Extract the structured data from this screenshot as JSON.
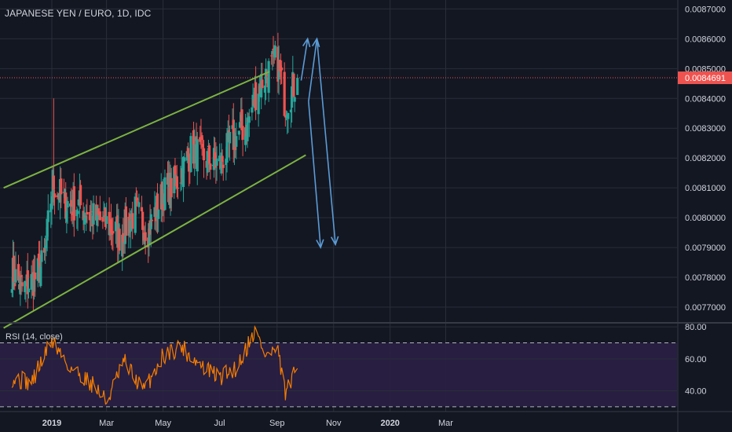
{
  "header": {
    "symbol_title": "JAPANESE YEN / EURO, 1D, IDC"
  },
  "colors": {
    "background": "#131722",
    "grid": "#2a2e39",
    "axis_text": "#d1d4dc",
    "up_candle": "#26a69a",
    "down_candle": "#ef5350",
    "channel_lines": "#7cb342",
    "projection_arrows": "#5b9bd5",
    "rsi_line": "#f57c00",
    "rsi_band": "#2a1f45",
    "price_tag": "#ef5350"
  },
  "chart_data": [
    {
      "type": "candlestick",
      "title": "JAPANESE YEN / EURO, 1D, IDC",
      "x_ticks": [
        "2019",
        "Mar",
        "May",
        "Jul",
        "Sep",
        "Nov",
        "2020",
        "Mar"
      ],
      "y_ticks": [
        "0.0077000",
        "0.0078000",
        "0.0079000",
        "0.0080000",
        "0.0081000",
        "0.0082000",
        "0.0083000",
        "0.0084000",
        "0.0085000",
        "0.0086000",
        "0.0087000"
      ],
      "ylim": [
        0.00765,
        0.00873
      ],
      "last_price_label": "0.0084691",
      "last_price": 0.0084691,
      "overview_closes": [
        {
          "date": "2018-11-19",
          "close": 0.00782
        },
        {
          "date": "2018-12-01",
          "close": 0.00776
        },
        {
          "date": "2018-12-15",
          "close": 0.0078
        },
        {
          "date": "2018-12-24",
          "close": 0.00786
        },
        {
          "date": "2019-01-02",
          "close": 0.00812
        },
        {
          "date": "2019-01-15",
          "close": 0.00805
        },
        {
          "date": "2019-02-01",
          "close": 0.00804
        },
        {
          "date": "2019-02-15",
          "close": 0.008
        },
        {
          "date": "2019-03-01",
          "close": 0.00798
        },
        {
          "date": "2019-03-15",
          "close": 0.00794
        },
        {
          "date": "2019-04-01",
          "close": 0.00802
        },
        {
          "date": "2019-04-15",
          "close": 0.00796
        },
        {
          "date": "2019-05-01",
          "close": 0.00808
        },
        {
          "date": "2019-05-15",
          "close": 0.00812
        },
        {
          "date": "2019-06-01",
          "close": 0.00823
        },
        {
          "date": "2019-06-15",
          "close": 0.0082
        },
        {
          "date": "2019-07-01",
          "close": 0.00818
        },
        {
          "date": "2019-07-15",
          "close": 0.00826
        },
        {
          "date": "2019-08-01",
          "close": 0.00832
        },
        {
          "date": "2019-08-10",
          "close": 0.00843
        },
        {
          "date": "2019-08-20",
          "close": 0.00848
        },
        {
          "date": "2019-09-01",
          "close": 0.00853
        },
        {
          "date": "2019-09-10",
          "close": 0.00838
        },
        {
          "date": "2019-09-23",
          "close": 0.008469
        }
      ],
      "annotations": [
        {
          "kind": "channel-upper",
          "from": {
            "date": "2018-11-10",
            "value": 0.0081
          },
          "to": {
            "date": "2019-08-24",
            "value": 0.00849
          }
        },
        {
          "kind": "channel-lower",
          "from": {
            "date": "2018-11-10",
            "value": 0.00763
          },
          "to": {
            "date": "2019-10-02",
            "value": 0.00821
          }
        },
        {
          "kind": "projection-arrow",
          "from": {
            "date": "2019-09-27",
            "value": 0.00846
          },
          "to": {
            "date": "2019-10-04",
            "value": 0.0086
          }
        },
        {
          "kind": "projection-arrow",
          "from": {
            "date": "2019-10-05",
            "value": 0.00839
          },
          "to": {
            "date": "2019-10-18",
            "value": 0.0079
          }
        },
        {
          "kind": "projection-arrow",
          "from": {
            "date": "2019-10-05",
            "value": 0.00839
          },
          "to": {
            "date": "2019-10-14",
            "value": 0.0086
          }
        },
        {
          "kind": "projection-arrow",
          "from": {
            "date": "2019-10-14",
            "value": 0.0086
          },
          "to": {
            "date": "2019-11-03",
            "value": 0.00791
          }
        }
      ]
    },
    {
      "type": "line",
      "title": "RSI (14, close)",
      "y_ticks": [
        "40.00",
        "60.00",
        "80.00"
      ],
      "ylim": [
        28,
        82
      ],
      "levels": [
        30,
        70
      ],
      "overview": [
        {
          "date": "2018-11-19",
          "value": 48
        },
        {
          "date": "2018-12-10",
          "value": 45
        },
        {
          "date": "2019-01-01",
          "value": 72
        },
        {
          "date": "2019-01-20",
          "value": 55
        },
        {
          "date": "2019-02-15",
          "value": 44
        },
        {
          "date": "2019-03-01",
          "value": 33
        },
        {
          "date": "2019-03-20",
          "value": 58
        },
        {
          "date": "2019-04-10",
          "value": 40
        },
        {
          "date": "2019-05-01",
          "value": 62
        },
        {
          "date": "2019-05-20",
          "value": 68
        },
        {
          "date": "2019-06-10",
          "value": 56
        },
        {
          "date": "2019-07-01",
          "value": 48
        },
        {
          "date": "2019-07-20",
          "value": 55
        },
        {
          "date": "2019-08-08",
          "value": 78
        },
        {
          "date": "2019-08-20",
          "value": 62
        },
        {
          "date": "2019-09-01",
          "value": 66
        },
        {
          "date": "2019-09-10",
          "value": 38
        },
        {
          "date": "2019-09-23",
          "value": 54
        }
      ]
    }
  ]
}
